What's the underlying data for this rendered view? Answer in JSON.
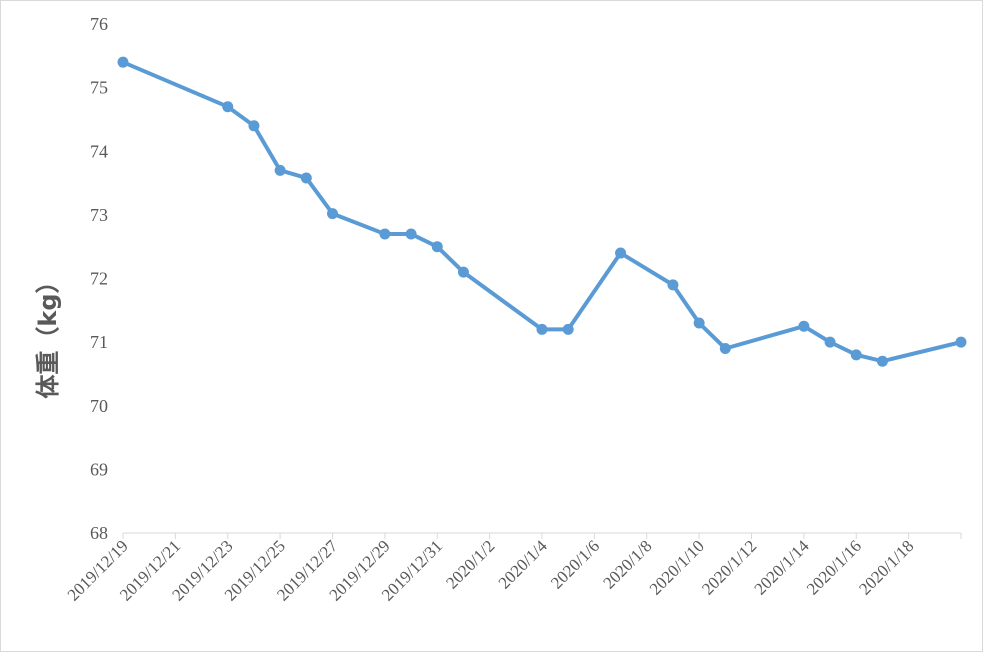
{
  "chart_data": {
    "type": "line",
    "title": "",
    "xlabel": "",
    "ylabel": "体重（kg）",
    "ylim": [
      68,
      76
    ],
    "yticks": [
      "68",
      "69",
      "70",
      "71",
      "72",
      "73",
      "74",
      "75",
      "76"
    ],
    "xlim": [
      "2019-12-19",
      "2020-01-20"
    ],
    "xticks": [
      "2019/12/19",
      "2019/12/21",
      "2019/12/23",
      "2019/12/25",
      "2019/12/27",
      "2019/12/29",
      "2019/12/31",
      "2020/1/2",
      "2020/1/4",
      "2020/1/6",
      "2020/1/8",
      "2020/1/10",
      "2020/1/12",
      "2020/1/14",
      "2020/1/16",
      "2020/1/18"
    ],
    "grid": false,
    "legend": "none",
    "series": [
      {
        "color": "#5b9bd5",
        "points": [
          {
            "x": "2019-12-19",
            "y": 75.4
          },
          {
            "x": "2019-12-23",
            "y": 74.7
          },
          {
            "x": "2019-12-24",
            "y": 74.4
          },
          {
            "x": "2019-12-25",
            "y": 73.7
          },
          {
            "x": "2019-12-26",
            "y": 73.58
          },
          {
            "x": "2019-12-27",
            "y": 73.02
          },
          {
            "x": "2019-12-29",
            "y": 72.7
          },
          {
            "x": "2019-12-30",
            "y": 72.7
          },
          {
            "x": "2019-12-31",
            "y": 72.5
          },
          {
            "x": "2020-01-01",
            "y": 72.1
          },
          {
            "x": "2020-01-04",
            "y": 71.2
          },
          {
            "x": "2020-01-05",
            "y": 71.2
          },
          {
            "x": "2020-01-07",
            "y": 72.4
          },
          {
            "x": "2020-01-09",
            "y": 71.9
          },
          {
            "x": "2020-01-10",
            "y": 71.3
          },
          {
            "x": "2020-01-11",
            "y": 70.9
          },
          {
            "x": "2020-01-14",
            "y": 71.25
          },
          {
            "x": "2020-01-15",
            "y": 71.0
          },
          {
            "x": "2020-01-16",
            "y": 70.8
          },
          {
            "x": "2020-01-17",
            "y": 70.7
          },
          {
            "x": "2020-01-20",
            "y": 71.0
          }
        ]
      }
    ]
  }
}
